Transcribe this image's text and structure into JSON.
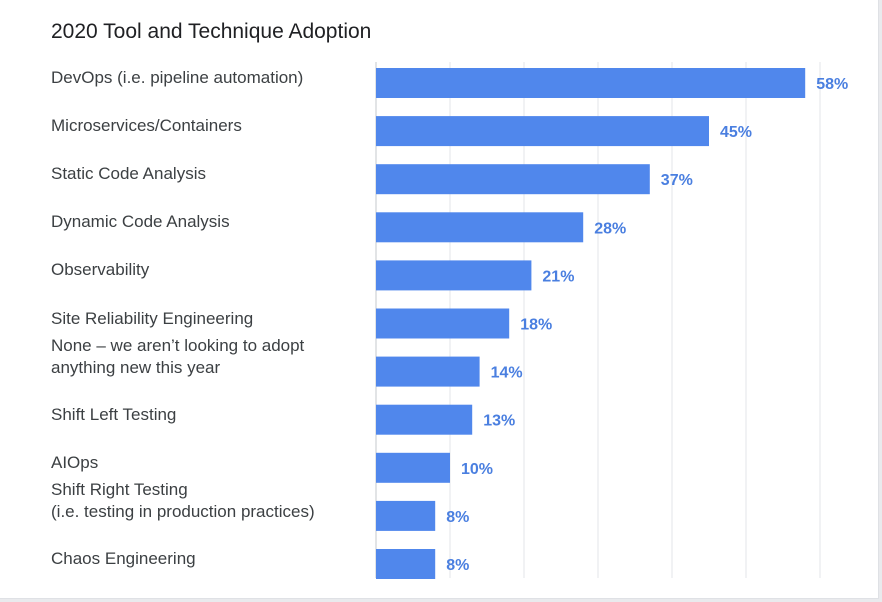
{
  "chart_data": {
    "type": "bar",
    "orientation": "horizontal",
    "title": "2020 Tool and Technique Adoption",
    "categories": [
      "DevOps (i.e. pipeline automation)",
      "Microservices/Containers",
      "Static Code Analysis",
      "Dynamic Code Analysis",
      "Observability",
      "Site Reliability Engineering",
      "None – we aren’t looking to adopt\nanything new this year",
      "Shift Left Testing",
      "AIOps",
      "Shift Right Testing\n(i.e. testing in production practices)",
      "Chaos Engineering"
    ],
    "values": [
      58,
      45,
      37,
      28,
      21,
      18,
      14,
      13,
      10,
      8,
      8
    ],
    "value_labels": [
      "58%",
      "45%",
      "37%",
      "28%",
      "21%",
      "18%",
      "14%",
      "13%",
      "10%",
      "8%",
      "8%"
    ],
    "unit": "%",
    "xlim": [
      0,
      60
    ],
    "grid": true,
    "legend": "none",
    "bar_color": "#5087ec",
    "label_color": "#4a7fe0"
  }
}
